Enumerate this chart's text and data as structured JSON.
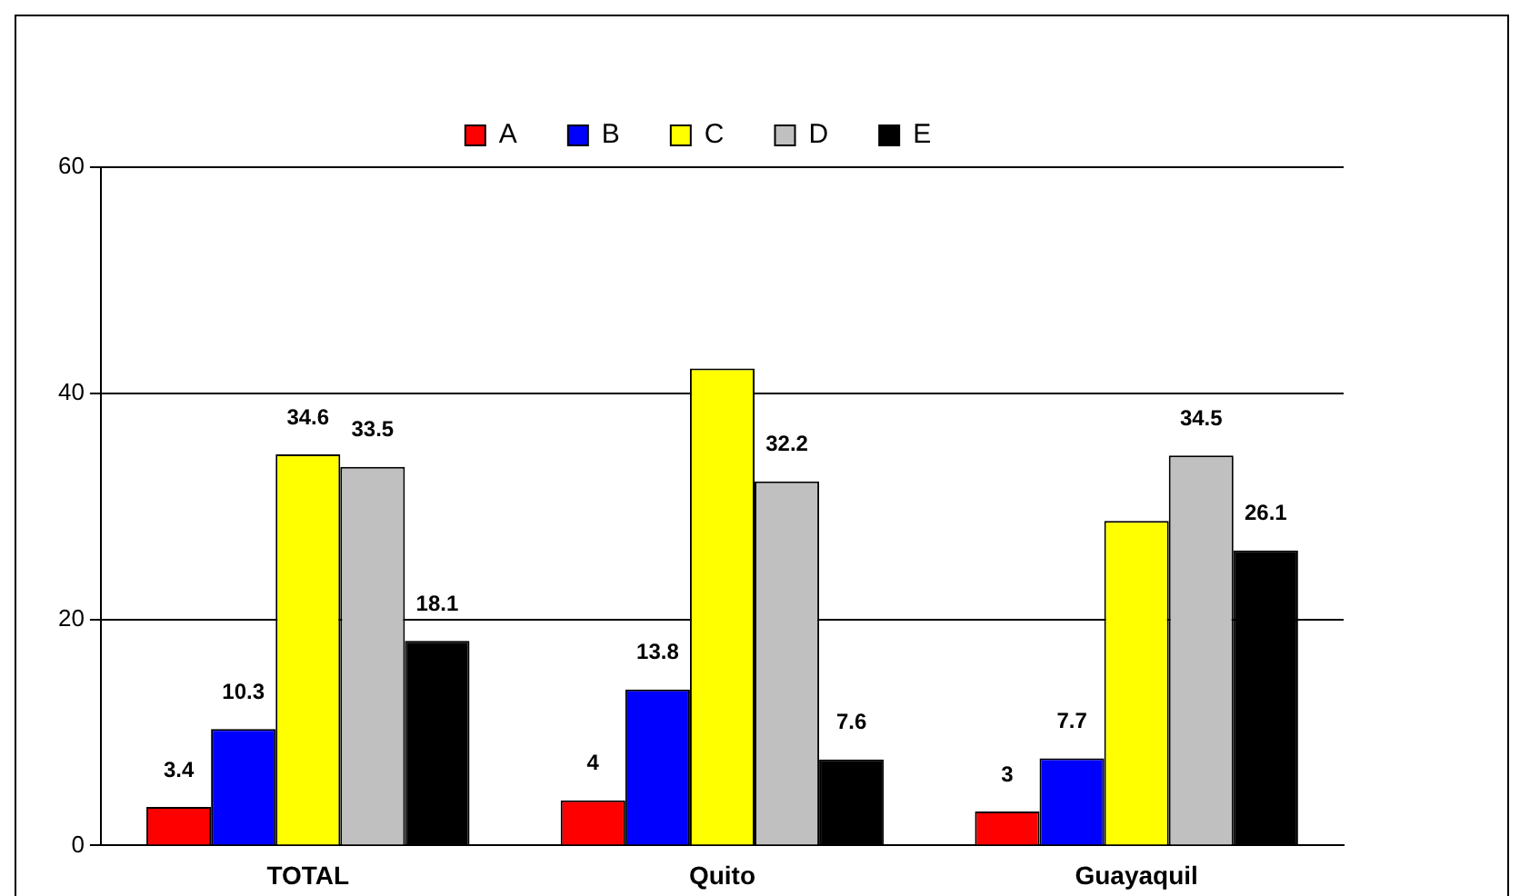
{
  "chart_data": {
    "type": "bar",
    "categories": [
      "TOTAL",
      "Quito",
      "Guayaquil"
    ],
    "series": [
      {
        "name": "A",
        "color": "#ff0000",
        "values": [
          3.4,
          4,
          3
        ],
        "value_labels": [
          "3.4",
          "4",
          "3"
        ]
      },
      {
        "name": "B",
        "color": "#0000ff",
        "values": [
          10.3,
          13.8,
          7.7
        ],
        "value_labels": [
          "10.3",
          "13.8",
          "7.7"
        ]
      },
      {
        "name": "C",
        "color": "#ffff00",
        "values": [
          34.6,
          42.2,
          28.7
        ],
        "value_labels": [
          "34.6",
          null,
          null
        ]
      },
      {
        "name": "D",
        "color": "#c0c0c0",
        "values": [
          33.5,
          32.2,
          34.5
        ],
        "value_labels": [
          "33.5",
          "32.2",
          "34.5"
        ]
      },
      {
        "name": "E",
        "color": "#000000",
        "values": [
          18.1,
          7.6,
          26.1
        ],
        "value_labels": [
          "18.1",
          "7.6",
          "26.1"
        ]
      }
    ],
    "ylim": [
      0,
      60
    ],
    "yticks": [
      0,
      20,
      40,
      60
    ],
    "grid": "y",
    "legend": "top"
  }
}
